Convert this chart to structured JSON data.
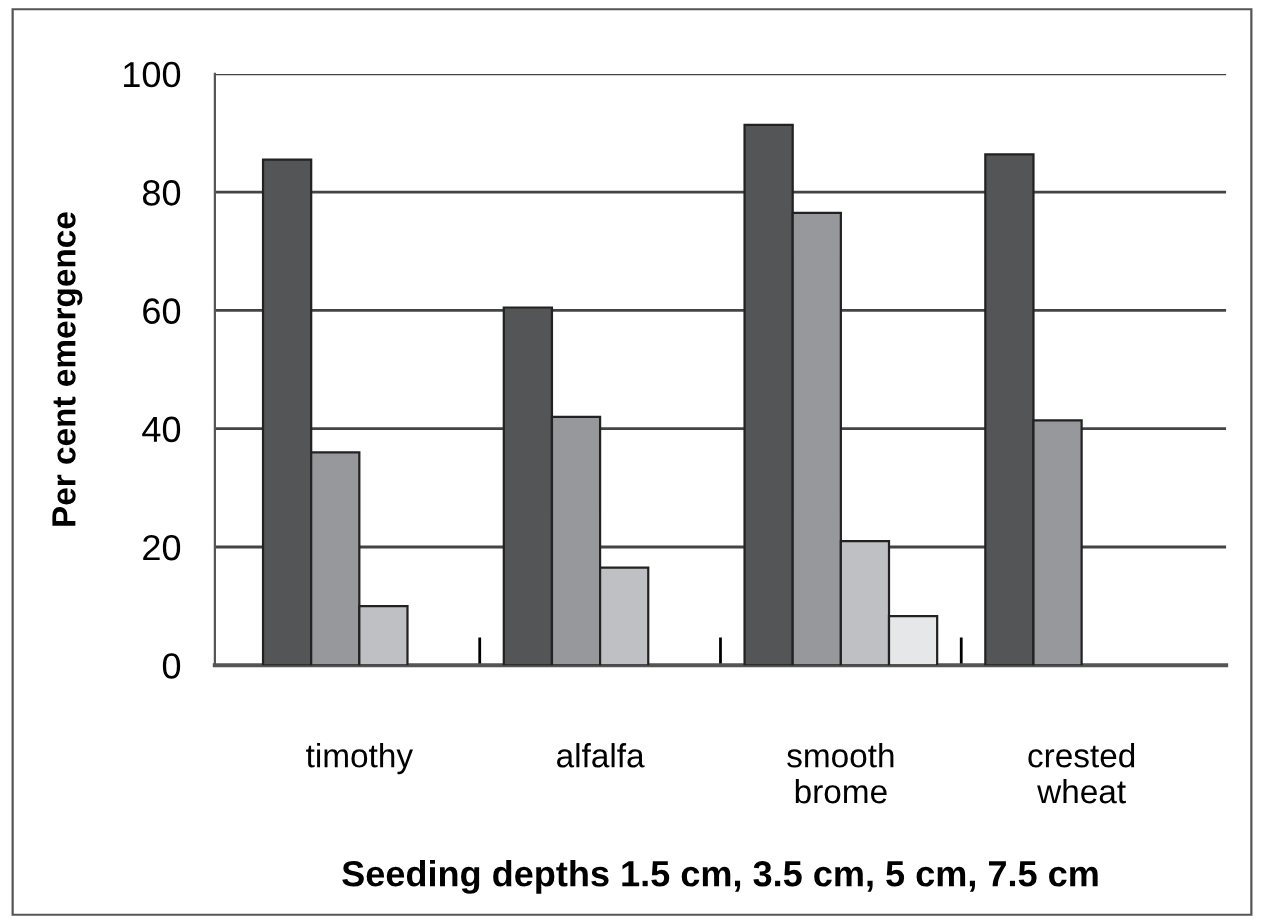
{
  "chart_data": {
    "type": "bar",
    "xlabel": "Seeding depths 1.5 cm, 3.5 cm, 5 cm, 7.5 cm",
    "ylabel": "Per cent emergence",
    "categories": [
      "timothy",
      "alfalfa",
      "smooth\nbrome",
      "crested\nwheat"
    ],
    "series": [
      {
        "color": "#545556",
        "values": [
          85.5,
          60.5,
          91.4,
          86.4
        ]
      },
      {
        "color": "#97989b",
        "values": [
          36,
          42,
          76.5,
          41.4
        ]
      },
      {
        "color": "#bfc0c3",
        "values": [
          10,
          16.5,
          21,
          null
        ]
      },
      {
        "color": "#e6e7e8",
        "values": [
          null,
          null,
          8.3,
          null
        ]
      }
    ],
    "ylim": [
      0,
      100
    ],
    "yticks": [
      0,
      20,
      40,
      60,
      80,
      100
    ],
    "grid": "y",
    "legend": false
  }
}
